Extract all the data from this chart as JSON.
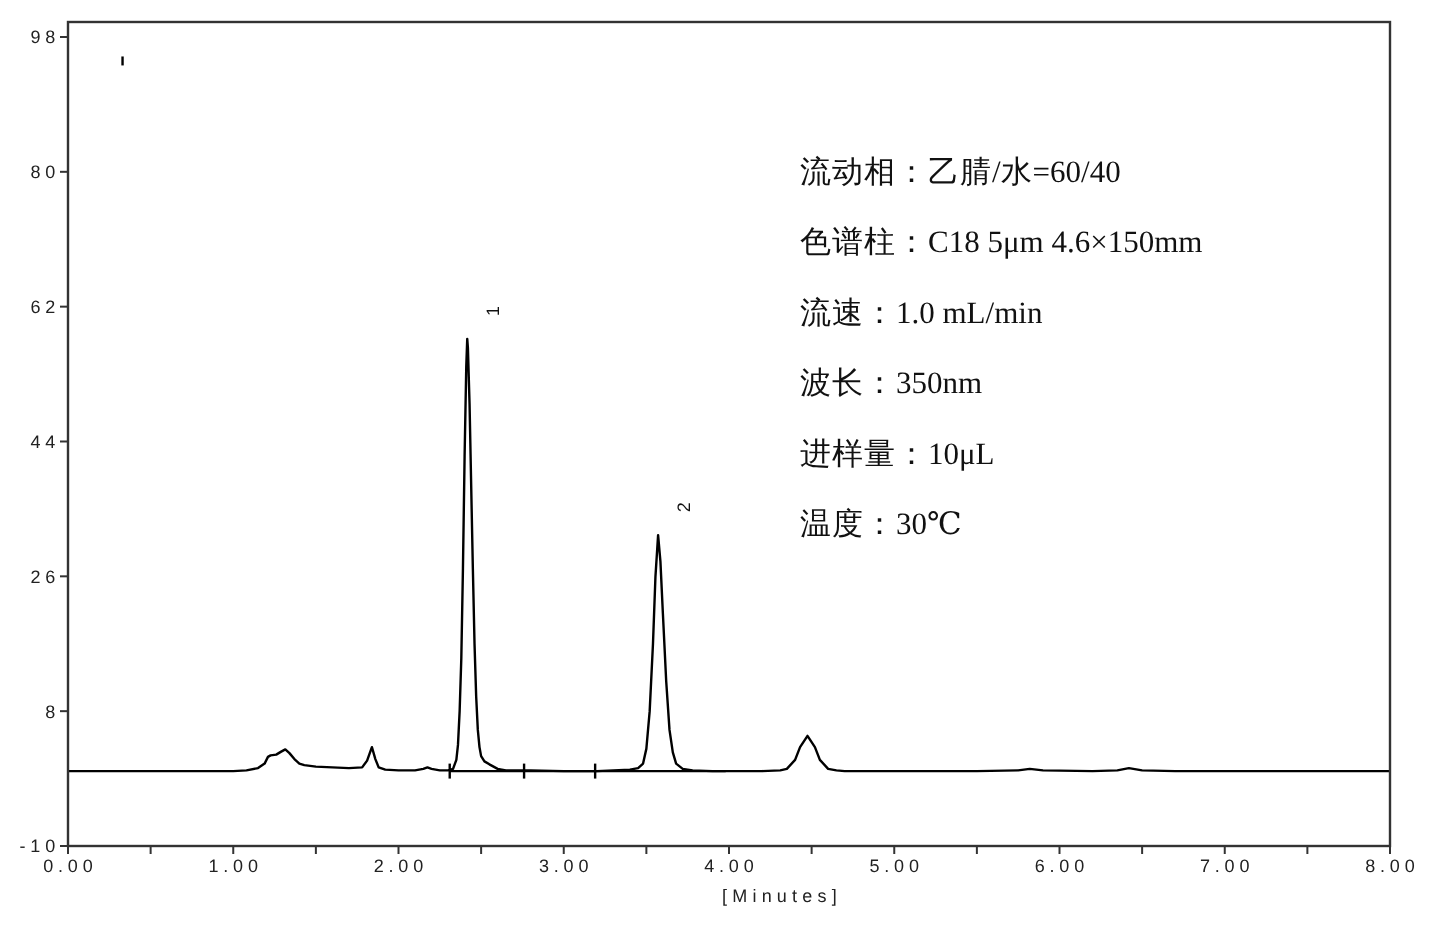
{
  "chart_data": {
    "type": "line",
    "xlabel": "[Minutes]",
    "line_style": "solid",
    "xlim": [
      0,
      8
    ],
    "xticks": [
      {
        "value": 0,
        "label": "0.00"
      },
      {
        "value": 0.5,
        "label": null
      },
      {
        "value": 1,
        "label": "1.00"
      },
      {
        "value": 1.5,
        "label": null
      },
      {
        "value": 2,
        "label": "2.00"
      },
      {
        "value": 2.5,
        "label": null
      },
      {
        "value": 3,
        "label": "3.00"
      },
      {
        "value": 3.5,
        "label": null
      },
      {
        "value": 4,
        "label": "4.00"
      },
      {
        "value": 4.5,
        "label": null
      },
      {
        "value": 5,
        "label": "5.00"
      },
      {
        "value": 5.5,
        "label": null
      },
      {
        "value": 6,
        "label": "6.00"
      },
      {
        "value": 6.5,
        "label": null
      },
      {
        "value": 7,
        "label": "7.00"
      },
      {
        "value": 7.5,
        "label": null
      },
      {
        "value": 8,
        "label": "8.00"
      }
    ],
    "ylim": [
      -10,
      100
    ],
    "yticks": [
      -10,
      8,
      26,
      44,
      62,
      80,
      98
    ],
    "annotations": [
      {
        "text": "1",
        "x": 2.416,
        "y": 57.7
      },
      {
        "text": "2",
        "x": 3.571,
        "y": 31.5
      },
      "流动相：乙腈/水=60/40",
      "色谱柱：C18 5μm 4.6×150mm",
      "流速：1.0 mL/min",
      "波长：350nm",
      "进样量：10μL",
      "温度：30℃"
    ],
    "series": [
      {
        "color": "#000000",
        "x": [
          0,
          0.5,
          1.0,
          1.08,
          1.15,
          1.19,
          1.21,
          1.226,
          1.26,
          1.29,
          1.315,
          1.34,
          1.37,
          1.4,
          1.43,
          1.5,
          1.6,
          1.7,
          1.78,
          1.81,
          1.839,
          1.86,
          1.88,
          1.92,
          2.0,
          2.1,
          2.15,
          2.175,
          2.2,
          2.25,
          2.3,
          2.33,
          2.35,
          2.36,
          2.37,
          2.38,
          2.39,
          2.4,
          2.41,
          2.416,
          2.42,
          2.43,
          2.44,
          2.45,
          2.46,
          2.47,
          2.48,
          2.49,
          2.5,
          2.52,
          2.55,
          2.6,
          2.65,
          2.8,
          3.0,
          3.2,
          3.3,
          3.4,
          3.45,
          3.48,
          3.5,
          3.52,
          3.54,
          3.555,
          3.571,
          3.585,
          3.6,
          3.62,
          3.64,
          3.66,
          3.68,
          3.72,
          3.78,
          3.9,
          4.0,
          4.2,
          4.31,
          4.35,
          4.4,
          4.43,
          4.475,
          4.52,
          4.55,
          4.6,
          4.65,
          4.7,
          5.0,
          5.5,
          5.75,
          5.82,
          5.9,
          6.2,
          6.35,
          6.42,
          6.5,
          6.7,
          7.0,
          7.5,
          8.0
        ],
        "values": [
          0,
          0,
          0,
          0.1,
          0.4,
          1.0,
          1.9,
          2.1,
          2.2,
          2.6,
          2.9,
          2.4,
          1.6,
          1.0,
          0.8,
          0.6,
          0.5,
          0.4,
          0.5,
          1.4,
          3.2,
          1.6,
          0.5,
          0.2,
          0.1,
          0.1,
          0.3,
          0.5,
          0.3,
          0.1,
          0.1,
          0.3,
          1.5,
          3.5,
          8,
          15,
          27,
          42,
          54,
          57.7,
          56.5,
          49,
          38,
          27,
          17,
          10,
          5.5,
          3.2,
          2.0,
          1.3,
          0.9,
          0.3,
          0.1,
          0.1,
          0,
          0,
          0.1,
          0.2,
          0.4,
          1.0,
          3,
          8,
          17,
          26,
          31.5,
          28,
          21,
          12,
          5.5,
          2.5,
          1.0,
          0.3,
          0.1,
          0,
          0,
          0,
          0.1,
          0.3,
          1.5,
          3.2,
          4.7,
          3.2,
          1.5,
          0.3,
          0.1,
          0,
          0,
          0,
          0.1,
          0.3,
          0.1,
          0,
          0.1,
          0.4,
          0.1,
          0,
          0,
          0,
          0
        ]
      },
      {
        "color": "#000000",
        "x": [
          2.31,
          3.98
        ],
        "values": [
          0,
          0
        ]
      },
      {
        "color": "#000000",
        "x": [
          0.33,
          0.33
        ],
        "values": [
          94.2,
          95.4
        ]
      },
      {
        "color": "#000000",
        "x": [
          2.31,
          2.31
        ],
        "values": [
          -1,
          1
        ]
      },
      {
        "color": "#000000",
        "x": [
          2.76,
          2.76
        ],
        "values": [
          -1,
          1
        ]
      },
      {
        "color": "#000000",
        "x": [
          3.19,
          3.19
        ],
        "values": [
          -1,
          1
        ]
      }
    ]
  }
}
